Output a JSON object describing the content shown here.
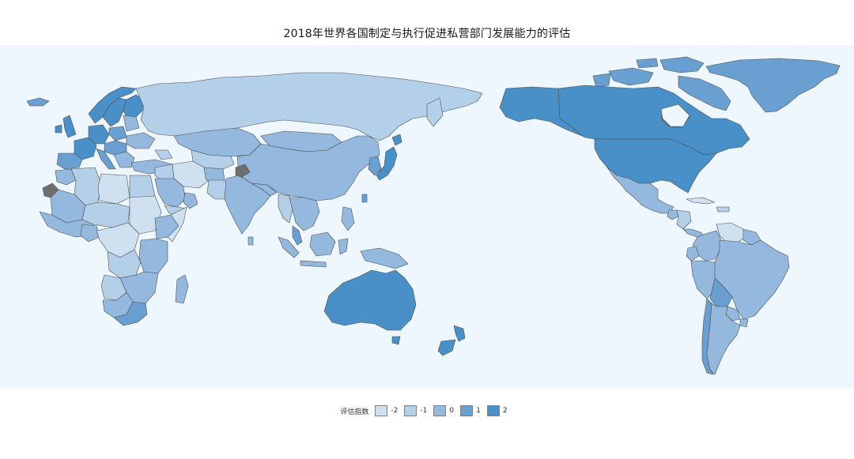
{
  "title": "2018年世界各国制定与执行促进私营部门发展能力的评估",
  "colors": {
    "ocean": "#eef7fd",
    "border": "#4f4f4f",
    "no_data": "#6f6f6f",
    "level_-2": "#cfe1f0",
    "level_-1": "#b4cfe8",
    "level_0": "#94b8de",
    "level_1": "#6a9fd1",
    "level_2": "#4990c8"
  },
  "legend": {
    "title": "评估指数",
    "items": [
      {
        "label": "-2",
        "level": "-2",
        "color": "#cfe1f0"
      },
      {
        "label": "-1",
        "level": "-1",
        "color": "#b4cfe8"
      },
      {
        "label": "0",
        "level": "0",
        "color": "#94b8de"
      },
      {
        "label": "1",
        "level": "1",
        "color": "#6a9fd1"
      },
      {
        "label": "2",
        "level": "2",
        "color": "#4990c8"
      }
    ]
  }
}
